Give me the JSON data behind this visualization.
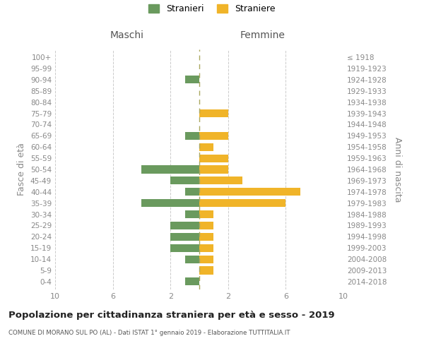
{
  "age_groups": [
    "0-4",
    "5-9",
    "10-14",
    "15-19",
    "20-24",
    "25-29",
    "30-34",
    "35-39",
    "40-44",
    "45-49",
    "50-54",
    "55-59",
    "60-64",
    "65-69",
    "70-74",
    "75-79",
    "80-84",
    "85-89",
    "90-94",
    "95-99",
    "100+"
  ],
  "birth_years": [
    "2014-2018",
    "2009-2013",
    "2004-2008",
    "1999-2003",
    "1994-1998",
    "1989-1993",
    "1984-1988",
    "1979-1983",
    "1974-1978",
    "1969-1973",
    "1964-1968",
    "1959-1963",
    "1954-1958",
    "1949-1953",
    "1944-1948",
    "1939-1943",
    "1934-1938",
    "1929-1933",
    "1924-1928",
    "1919-1923",
    "≤ 1918"
  ],
  "maschi": [
    1,
    0,
    1,
    2,
    2,
    2,
    1,
    4,
    1,
    2,
    4,
    0,
    0,
    1,
    0,
    0,
    0,
    0,
    1,
    0,
    0
  ],
  "femmine": [
    0,
    1,
    1,
    1,
    1,
    1,
    1,
    6,
    7,
    3,
    2,
    2,
    1,
    2,
    0,
    2,
    0,
    0,
    0,
    0,
    0
  ],
  "maschi_color": "#6a9a5e",
  "femmine_color": "#f0b429",
  "title": "Popolazione per cittadinanza straniera per età e sesso - 2019",
  "subtitle": "COMUNE DI MORANO SUL PO (AL) - Dati ISTAT 1° gennaio 2019 - Elaborazione TUTTITALIA.IT",
  "ylabel_left": "Fasce di età",
  "ylabel_right": "Anni di nascita",
  "xlabel_maschi": "Maschi",
  "xlabel_femmine": "Femmine",
  "legend_maschi": "Stranieri",
  "legend_femmine": "Straniere",
  "xlim": 10,
  "background_color": "#ffffff",
  "grid_color": "#cccccc",
  "tick_label_color": "#888888"
}
